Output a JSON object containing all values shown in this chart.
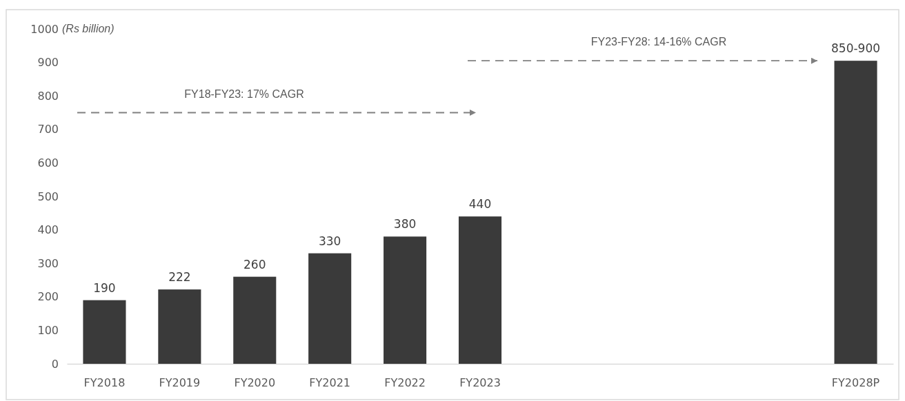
{
  "chart_data": {
    "type": "bar",
    "ylabel": "(Rs billion)",
    "categories": [
      "FY2018",
      "FY2019",
      "FY2020",
      "FY2021",
      "FY2022",
      "FY2023",
      null,
      null,
      null,
      null,
      "FY2028P"
    ],
    "values": [
      190,
      222,
      260,
      330,
      380,
      440,
      null,
      null,
      null,
      null,
      905
    ],
    "value_labels": [
      "190",
      "222",
      "260",
      "330",
      "380",
      "440",
      null,
      null,
      null,
      null,
      "850-900"
    ],
    "color": "#3a3a3a",
    "ylim": [
      0,
      1000
    ],
    "yticks": [
      0,
      100,
      200,
      300,
      400,
      500,
      600,
      700,
      800,
      900,
      1000
    ],
    "grid": false,
    "annotations": [
      "FY18-FY23: 17% CAGR",
      "FY23-FY28: 14-16% CAGR"
    ]
  }
}
